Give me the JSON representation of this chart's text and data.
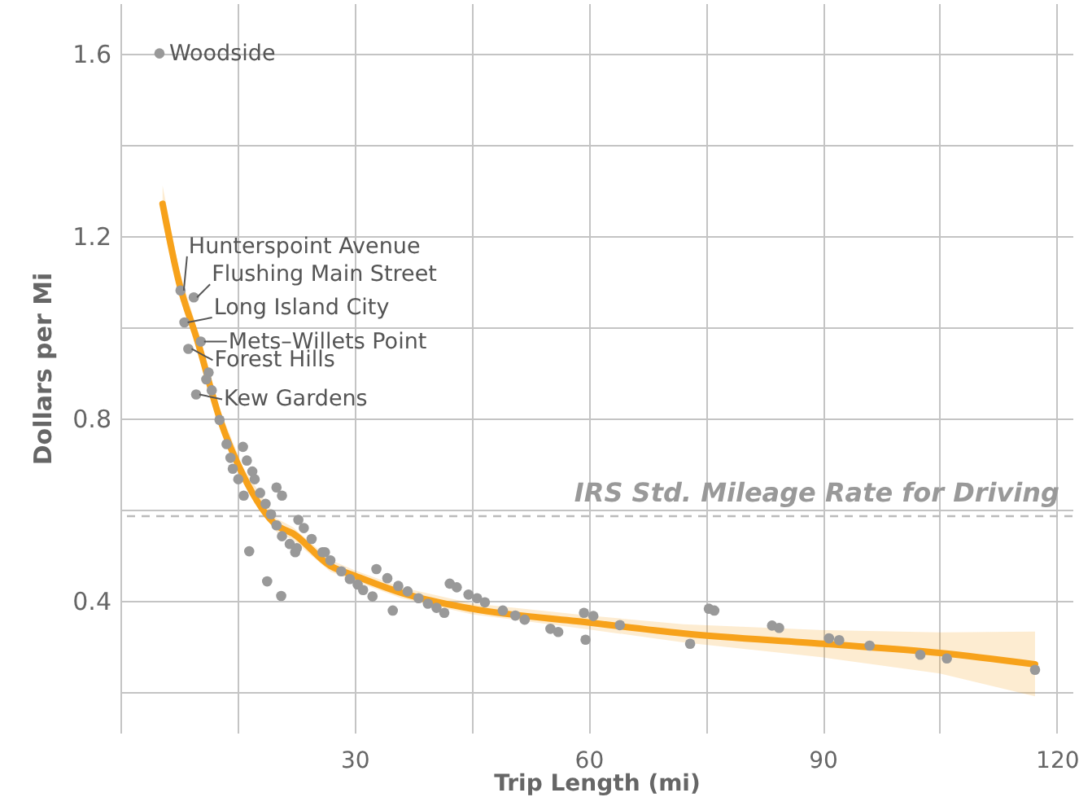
{
  "chart_data": {
    "type": "scatter",
    "xlabel": "Trip Length (mi)",
    "ylabel": "Dollars per Mi",
    "xlim": [
      0,
      122
    ],
    "ylim": [
      0.11,
      1.71
    ],
    "xticks": [
      {
        "value": 0,
        "label": null
      },
      {
        "value": 15,
        "label": null
      },
      30,
      {
        "value": 45,
        "label": null
      },
      60,
      {
        "value": 75,
        "label": null
      },
      90,
      {
        "value": 105,
        "label": null
      },
      120
    ],
    "yticks": [
      {
        "value": 0.2,
        "label": null
      },
      0.4,
      {
        "value": 0.6,
        "label": null
      },
      0.8,
      {
        "value": 1.0,
        "label": null
      },
      1.2,
      {
        "value": 1.4,
        "label": null
      },
      1.6
    ],
    "grid": true,
    "marker": "circle",
    "series": [
      {
        "type": "scatter",
        "color": "#999999",
        "x": [
          5,
          7.7,
          9.4,
          8.2,
          10.3,
          8.7,
          9.7,
          11.3,
          11,
          11.7,
          12.7,
          13.6,
          15.7,
          14.1,
          16.2,
          14.4,
          16.9,
          15.1,
          17.2,
          17.9,
          15.8,
          20,
          20.7,
          18.6,
          19.3,
          22.8,
          20,
          20.7,
          21.7,
          16.5,
          26.2,
          22.4,
          18.8,
          20.6,
          23.5,
          24.5,
          22.6,
          25.9,
          26.9,
          28.3,
          29.4,
          30.4,
          31.1,
          32.3,
          32.8,
          34.2,
          35.6,
          36.8,
          38.2,
          34.9,
          39.4,
          40.5,
          41.5,
          42.2,
          43.1,
          44.6,
          45.7,
          46.7,
          49,
          50.6,
          51.8,
          55.1,
          56.1,
          59.4,
          60.6,
          59.6,
          64,
          75.4,
          76.1,
          73,
          83.5,
          84.4,
          90.8,
          92.1,
          96,
          102.5,
          105.9,
          117.2
        ],
        "values": [
          1.6,
          1.08,
          1.065,
          1.01,
          0.968,
          0.952,
          0.852,
          0.9,
          0.885,
          0.861,
          0.796,
          0.743,
          0.737,
          0.713,
          0.707,
          0.689,
          0.683,
          0.666,
          0.666,
          0.636,
          0.63,
          0.648,
          0.63,
          0.612,
          0.589,
          0.577,
          0.565,
          0.541,
          0.524,
          0.508,
          0.506,
          0.506,
          0.442,
          0.41,
          0.559,
          0.535,
          0.515,
          0.506,
          0.488,
          0.464,
          0.447,
          0.435,
          0.423,
          0.409,
          0.469,
          0.449,
          0.432,
          0.42,
          0.405,
          0.378,
          0.393,
          0.384,
          0.373,
          0.437,
          0.429,
          0.413,
          0.405,
          0.396,
          0.378,
          0.367,
          0.358,
          0.338,
          0.331,
          0.373,
          0.366,
          0.314,
          0.346,
          0.382,
          0.378,
          0.305,
          0.345,
          0.34,
          0.317,
          0.313,
          0.301,
          0.281,
          0.273,
          0.248
        ]
      },
      {
        "type": "line",
        "color": "#f7a21b",
        "marker": "none",
        "x": [
          5.4,
          7.5,
          9.9,
          12.7,
          15.8,
          20,
          22.1,
          26.9,
          30.1,
          36,
          45,
          59.9,
          72.1,
          90.1,
          105,
          117.2
        ],
        "values": [
          1.27,
          1.098,
          0.968,
          0.8,
          0.672,
          0.565,
          0.547,
          0.476,
          0.454,
          0.417,
          0.382,
          0.352,
          0.328,
          0.305,
          0.285,
          0.26
        ],
        "lower": [
          1.23,
          1.07,
          0.945,
          0.78,
          0.655,
          0.55,
          0.533,
          0.463,
          0.442,
          0.405,
          0.37,
          0.337,
          0.308,
          0.275,
          0.24,
          0.19
        ],
        "upper": [
          1.31,
          1.126,
          0.991,
          0.82,
          0.689,
          0.58,
          0.561,
          0.489,
          0.466,
          0.429,
          0.394,
          0.367,
          0.348,
          0.335,
          0.33,
          0.332
        ]
      }
    ],
    "ref_lines": [
      {
        "axis": "y",
        "value": 0.585,
        "label": "IRS Std. Mileage Rate for Driving",
        "color": "#bbbbbb",
        "line_style": "dashed"
      }
    ],
    "annotations": [
      {
        "text": "Woodside",
        "x": 5,
        "y": 1.6
      },
      {
        "text": "Hunterspoint Avenue",
        "x": 7.7,
        "y": 1.08
      },
      {
        "text": "Flushing Main Street",
        "x": 9.4,
        "y": 1.065
      },
      {
        "text": "Long Island City",
        "x": 8.2,
        "y": 1.01
      },
      {
        "text": "Mets–Willets Point",
        "x": 10.3,
        "y": 0.968
      },
      {
        "text": "Forest Hills",
        "x": 8.7,
        "y": 0.952
      },
      {
        "text": "Kew Gardens",
        "x": 9.7,
        "y": 0.852
      }
    ]
  }
}
